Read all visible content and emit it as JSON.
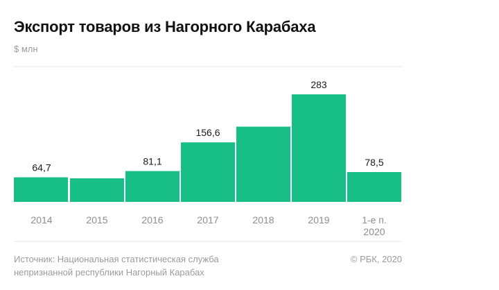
{
  "chart_data": {
    "type": "bar",
    "title": "Экспорт товаров из Нагорного Карабаха",
    "unit": "$ млн",
    "categories": [
      "2014",
      "2015",
      "2016",
      "2017",
      "2018",
      "2019",
      "1-е п. 2020"
    ],
    "category_lines": [
      [
        "2014"
      ],
      [
        "2015"
      ],
      [
        "2016"
      ],
      [
        "2017"
      ],
      [
        "2018"
      ],
      [
        "2019"
      ],
      [
        "1-е п.",
        "2020"
      ]
    ],
    "values": [
      64.7,
      62,
      81.1,
      156.6,
      198,
      283,
      78.5
    ],
    "data_labels": [
      "64,7",
      "",
      "81,1",
      "156,6",
      "",
      "283",
      "78,5"
    ],
    "ylim": [
      0,
      300
    ],
    "grid": true,
    "color": "#17bf87",
    "source_lines": [
      "Источник: Национальная статистическая служба",
      "непризнанной республики Нагорный Карабах"
    ],
    "credit": "© РБК, 2020"
  }
}
